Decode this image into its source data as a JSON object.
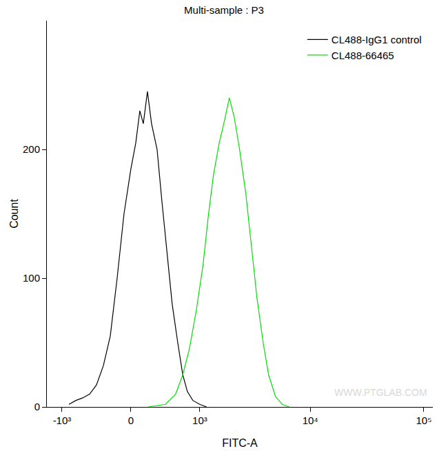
{
  "chart_data": {
    "type": "line",
    "title": "Multi-sample : P3",
    "x_label": "FITC-A",
    "y_label": "Count",
    "log": "x",
    "grid": false,
    "legend": "top-right",
    "xlim": [
      -1400,
      120000
    ],
    "xticks": [
      {
        "value": -1000,
        "label": "-10³"
      },
      0,
      {
        "value": 1000,
        "label": "10³"
      },
      {
        "value": 10000,
        "label": "10⁴"
      },
      {
        "value": 100000,
        "label": "10⁵"
      }
    ],
    "ylim": [
      0,
      300
    ],
    "yticks": [
      0,
      100,
      200
    ],
    "annotations": [
      "WWW.PTGLAB.COM"
    ],
    "series": [
      {
        "name": "CL488-IgG1 control",
        "color": "#000000",
        "x": [
          -850,
          -719,
          -602,
          -494,
          -399,
          -310,
          -227,
          -149,
          -74,
          0,
          52,
          96,
          134,
          180,
          227,
          293,
          353,
          418,
          494,
          579,
          662,
          744,
          850,
          1000,
          1164
        ],
        "values": [
          2,
          5,
          7,
          10,
          17,
          32,
          55,
          100,
          150,
          185,
          205,
          230,
          220,
          245,
          220,
          200,
          160,
          120,
          80,
          50,
          25,
          12,
          5,
          2,
          0
        ]
      },
      {
        "name": "CL488-66465",
        "color": "#00e000",
        "x": [
          188,
          399,
          546,
          662,
          781,
          922,
          1075,
          1217,
          1355,
          1534,
          1692,
          1902,
          2108,
          2356,
          2688,
          3004,
          3368,
          3826,
          4279,
          4927,
          5665,
          6514
        ],
        "values": [
          0,
          2,
          10,
          25,
          45,
          75,
          110,
          150,
          180,
          205,
          220,
          240,
          225,
          200,
          165,
          125,
          85,
          50,
          25,
          8,
          2,
          0
        ]
      }
    ]
  }
}
